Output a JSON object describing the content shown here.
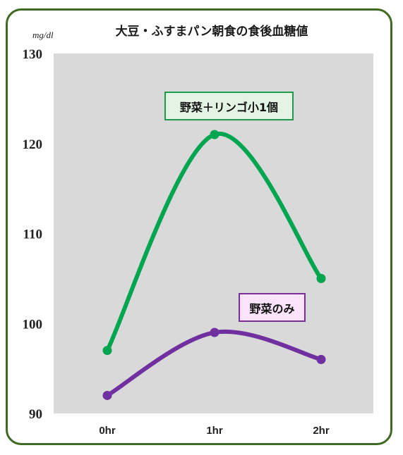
{
  "chart_data": {
    "type": "line",
    "title": "大豆・ふすまパン朝食の食後血糖値",
    "ylabel": "mg/dl",
    "xlabel": "",
    "categories": [
      "0hr",
      "1hr",
      "2hr"
    ],
    "ylim": [
      90,
      130
    ],
    "yticks": [
      90,
      100,
      110,
      120,
      130
    ],
    "grid": false,
    "background": "#d9d9d9",
    "series": [
      {
        "name": "野菜＋リンゴ小1個",
        "values": [
          97,
          121,
          105
        ],
        "color": "#00a550"
      },
      {
        "name": "野菜のみ",
        "values": [
          92,
          99,
          96
        ],
        "color": "#7030a0"
      }
    ]
  }
}
